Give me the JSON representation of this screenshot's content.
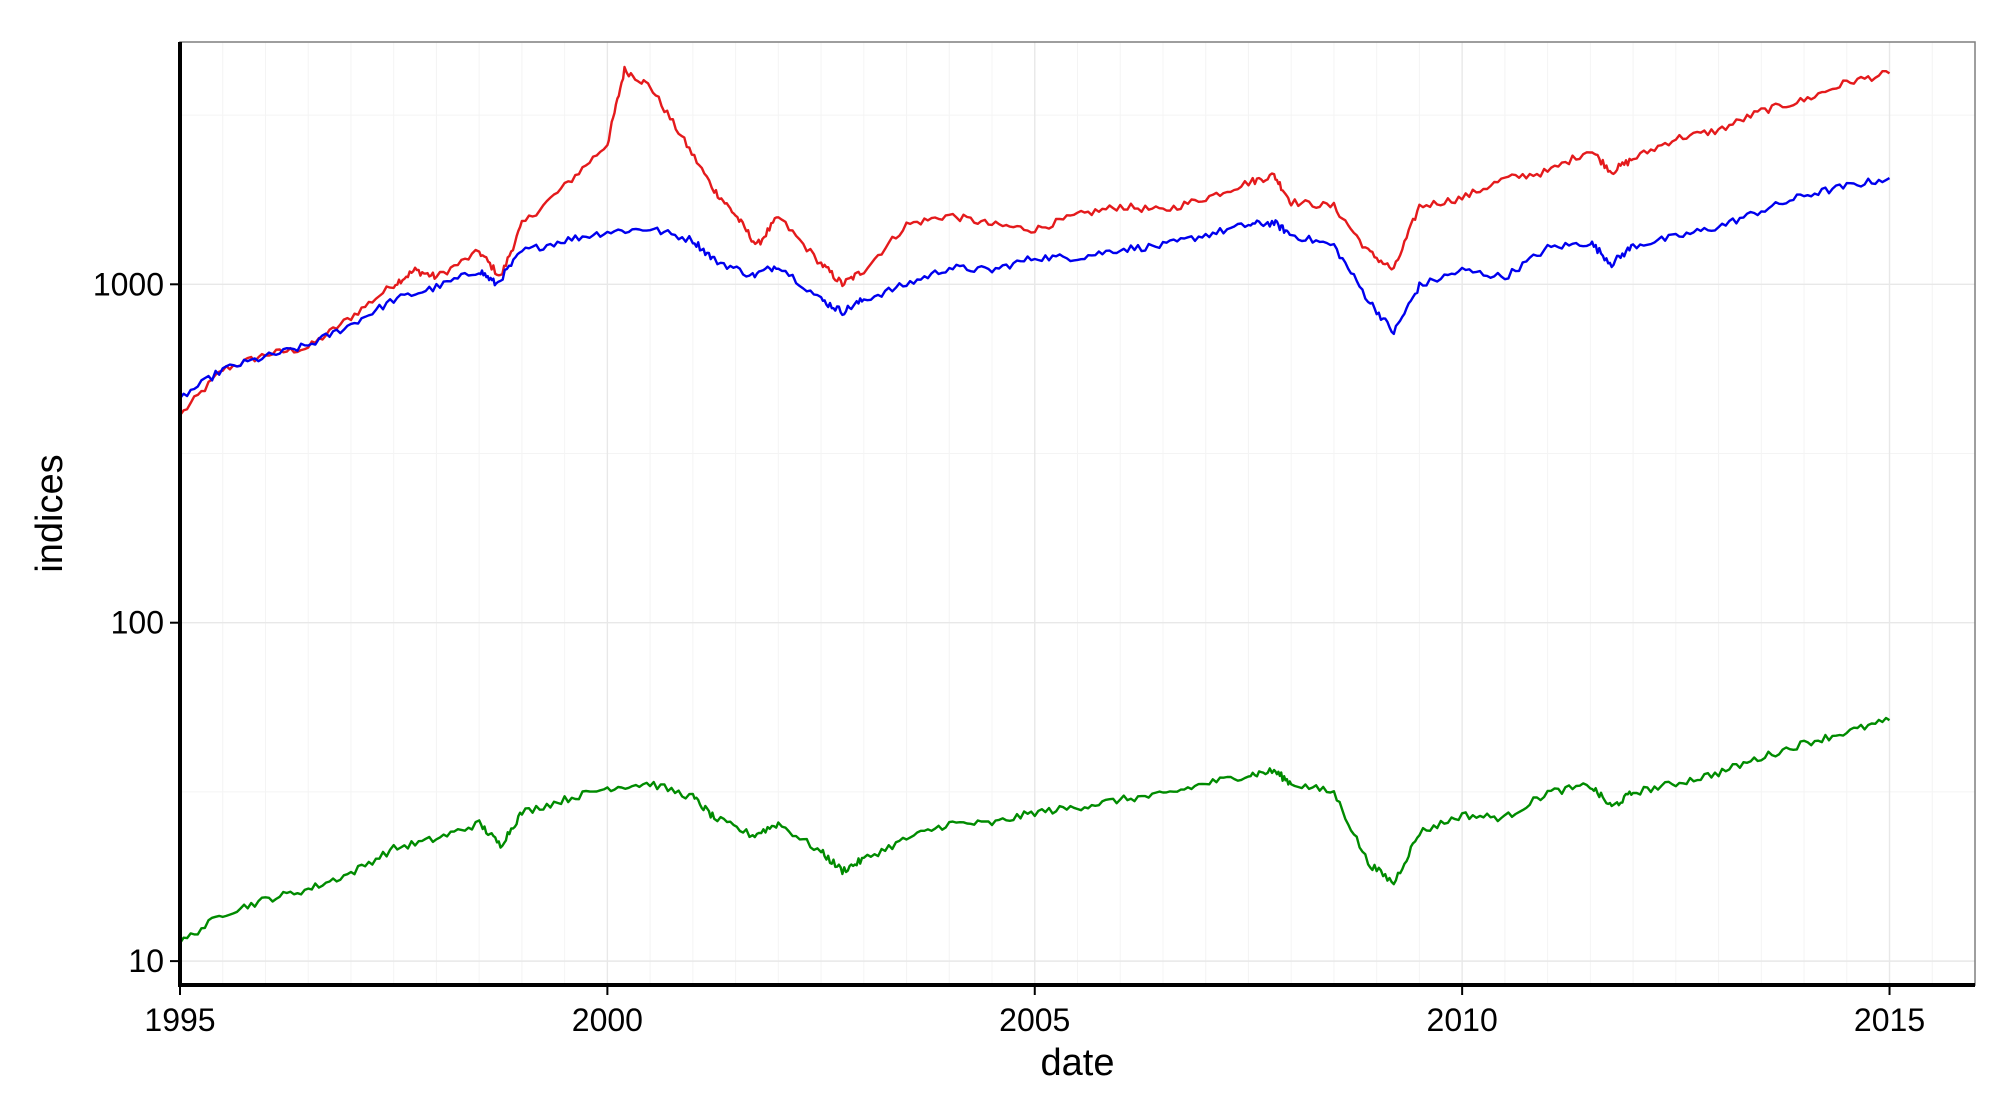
{
  "chart_data": {
    "type": "line",
    "title": "",
    "xlabel": "date",
    "ylabel": "indices",
    "x_scale": "time",
    "y_scale": "log10",
    "xlim": [
      1995.0,
      2016.0
    ],
    "ylim": [
      8.5,
      5200
    ],
    "x_ticks": [
      1995,
      2000,
      2005,
      2010,
      2015
    ],
    "x_tick_labels": [
      "1995",
      "2000",
      "2005",
      "2010",
      "2015"
    ],
    "y_ticks": [
      10,
      100,
      1000
    ],
    "y_tick_labels": [
      "10",
      "100",
      "1000"
    ],
    "grid": true,
    "legend": "none",
    "series": [
      {
        "color": "#e41a1c",
        "x": [
          1995.0,
          1995.5,
          1996.0,
          1996.5,
          1997.0,
          1997.5,
          1997.75,
          1998.0,
          1998.5,
          1998.75,
          1999.0,
          1999.5,
          2000.0,
          2000.2,
          2000.5,
          2000.9,
          2001.25,
          2001.5,
          2001.75,
          2002.0,
          2002.5,
          2002.75,
          2003.0,
          2003.5,
          2004.0,
          2004.5,
          2005.0,
          2005.5,
          2006.0,
          2006.5,
          2007.0,
          2007.5,
          2007.8,
          2008.0,
          2008.5,
          2008.9,
          2009.2,
          2009.5,
          2010.0,
          2010.5,
          2011.0,
          2011.5,
          2011.75,
          2012.0,
          2012.5,
          2013.0,
          2013.5,
          2014.0,
          2014.5,
          2015.0
        ],
        "y": [
          410,
          560,
          620,
          650,
          800,
          1000,
          1100,
          1050,
          1250,
          1050,
          1500,
          1950,
          2600,
          4300,
          3850,
          2650,
          1900,
          1600,
          1300,
          1580,
          1150,
          1000,
          1100,
          1500,
          1600,
          1500,
          1450,
          1600,
          1700,
          1650,
          1800,
          2000,
          2100,
          1750,
          1700,
          1250,
          1100,
          1700,
          1800,
          2050,
          2150,
          2500,
          2150,
          2350,
          2700,
          2850,
          3250,
          3500,
          3950,
          4200
        ]
      },
      {
        "color": "#0000ee",
        "x": [
          1995.0,
          1995.5,
          1996.0,
          1996.5,
          1997.0,
          1997.5,
          1998.0,
          1998.5,
          1998.7,
          1999.0,
          1999.5,
          2000.0,
          2000.5,
          2001.0,
          2001.25,
          2001.7,
          2002.0,
          2002.5,
          2002.75,
          2003.0,
          2003.5,
          2004.0,
          2004.5,
          2005.0,
          2005.5,
          2006.0,
          2006.5,
          2007.0,
          2007.5,
          2007.8,
          2008.0,
          2008.5,
          2008.9,
          2009.2,
          2009.5,
          2010.0,
          2010.5,
          2011.0,
          2011.5,
          2011.75,
          2012.0,
          2012.5,
          2013.0,
          2013.5,
          2014.0,
          2014.5,
          2015.0
        ],
        "y": [
          460,
          560,
          610,
          660,
          760,
          900,
          980,
          1100,
          1000,
          1250,
          1350,
          1430,
          1460,
          1350,
          1180,
          1060,
          1140,
          900,
          830,
          900,
          1000,
          1120,
          1100,
          1200,
          1200,
          1270,
          1300,
          1400,
          1500,
          1520,
          1400,
          1300,
          900,
          720,
          990,
          1100,
          1050,
          1280,
          1330,
          1150,
          1300,
          1380,
          1480,
          1650,
          1830,
          1950,
          2060
        ]
      },
      {
        "color": "#008b00",
        "x": [
          1995.0,
          1995.5,
          1996.0,
          1996.5,
          1997.0,
          1997.5,
          1998.0,
          1998.5,
          1998.75,
          1999.0,
          1999.5,
          2000.0,
          2000.5,
          2001.0,
          2001.25,
          2001.7,
          2002.0,
          2002.5,
          2002.75,
          2003.0,
          2003.5,
          2004.0,
          2004.5,
          2005.0,
          2005.5,
          2006.0,
          2006.5,
          2007.0,
          2007.5,
          2007.8,
          2008.0,
          2008.5,
          2008.9,
          2009.2,
          2009.5,
          2010.0,
          2010.5,
          2011.0,
          2011.5,
          2011.75,
          2012.0,
          2012.5,
          2013.0,
          2013.5,
          2014.0,
          2014.5,
          2015.0
        ],
        "y": [
          11.3,
          13.8,
          15.2,
          16.3,
          18.2,
          21.5,
          23.0,
          25.5,
          22.0,
          27.5,
          30.0,
          32.5,
          33.5,
          30.5,
          26.5,
          23.5,
          25.5,
          21.0,
          18.5,
          20.0,
          23.0,
          25.5,
          25.5,
          27.5,
          28.5,
          30.0,
          31.0,
          33.5,
          35.5,
          36.5,
          33.5,
          31.5,
          19.5,
          17.0,
          24.0,
          27.0,
          26.5,
          31.5,
          33.0,
          28.5,
          31.5,
          33.5,
          36.0,
          40.0,
          44.0,
          47.5,
          51.5
        ]
      }
    ]
  }
}
